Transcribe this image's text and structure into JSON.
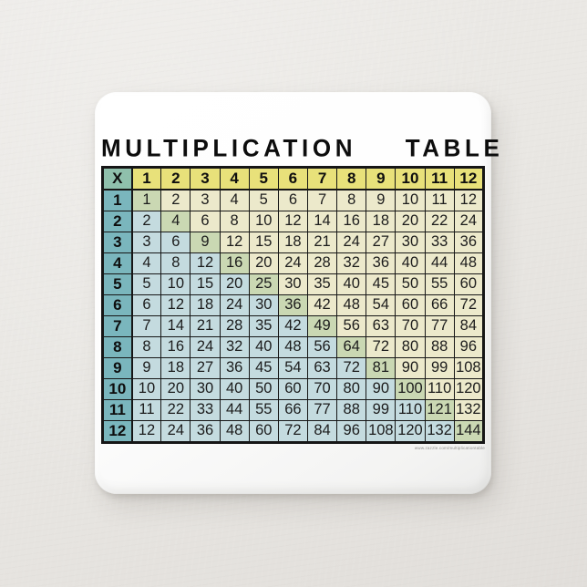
{
  "page": {
    "background": "#e9e7e3"
  },
  "button_product": {
    "title": "MULTIPLICATION  TABLE",
    "watermark": "www.zazzle.com/multiplicationtable"
  },
  "colors": {
    "grid": "#161616",
    "header_bg": "#e8e17a",
    "corner_bg": "#8fc0ac",
    "row_header_bg": "#7ab6bd",
    "diag_bg": "#cad8b3",
    "above_bg": "#ece9cb",
    "below_bg": "#c4dbdf"
  },
  "chart_data": {
    "type": "table",
    "title": "MULTIPLICATION  TABLE",
    "corner_label": "X",
    "col_headers": [
      "1",
      "2",
      "3",
      "4",
      "5",
      "6",
      "7",
      "8",
      "9",
      "10",
      "11",
      "12"
    ],
    "row_headers": [
      "1",
      "2",
      "3",
      "4",
      "5",
      "6",
      "7",
      "8",
      "9",
      "10",
      "11",
      "12"
    ],
    "rows": [
      [
        1,
        2,
        3,
        4,
        5,
        6,
        7,
        8,
        9,
        10,
        11,
        12
      ],
      [
        2,
        4,
        6,
        8,
        10,
        12,
        14,
        16,
        18,
        20,
        22,
        24
      ],
      [
        3,
        6,
        9,
        12,
        15,
        18,
        21,
        24,
        27,
        30,
        33,
        36
      ],
      [
        4,
        8,
        12,
        16,
        20,
        24,
        28,
        32,
        36,
        40,
        44,
        48
      ],
      [
        5,
        10,
        15,
        20,
        25,
        30,
        35,
        40,
        45,
        50,
        55,
        60
      ],
      [
        6,
        12,
        18,
        24,
        30,
        36,
        42,
        48,
        54,
        60,
        66,
        72
      ],
      [
        7,
        14,
        21,
        28,
        35,
        42,
        49,
        56,
        63,
        70,
        77,
        84
      ],
      [
        8,
        16,
        24,
        32,
        40,
        48,
        56,
        64,
        72,
        80,
        88,
        96
      ],
      [
        9,
        18,
        27,
        36,
        45,
        54,
        63,
        72,
        81,
        90,
        99,
        108
      ],
      [
        10,
        20,
        30,
        40,
        50,
        60,
        70,
        80,
        90,
        100,
        110,
        120
      ],
      [
        11,
        22,
        33,
        44,
        55,
        66,
        77,
        88,
        99,
        110,
        121,
        132
      ],
      [
        12,
        24,
        36,
        48,
        60,
        72,
        84,
        96,
        108,
        120,
        132,
        144
      ]
    ],
    "layout_hints": {
      "grid": "on",
      "highlighting": "diagonal squares sage-green; below diagonal pale blue; above diagonal cream"
    }
  }
}
